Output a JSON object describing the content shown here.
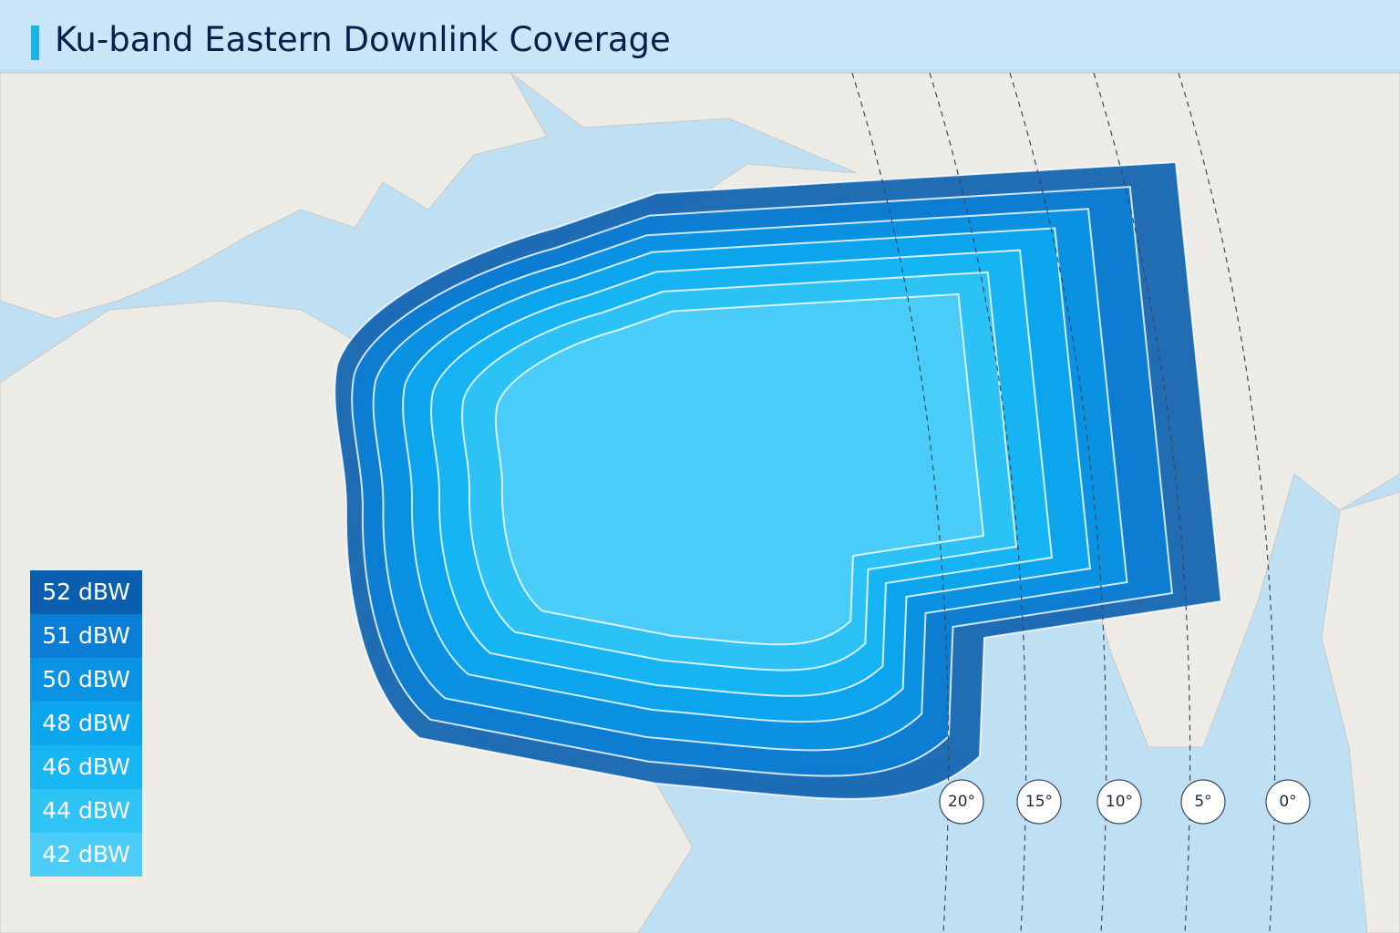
{
  "header": {
    "title": "Ku-band Eastern Downlink Coverage"
  },
  "legend": [
    {
      "label": "52 dBW",
      "color": "#0b5fae"
    },
    {
      "label": "51 dBW",
      "color": "#0a7ed4"
    },
    {
      "label": "50 dBW",
      "color": "#0a93e2"
    },
    {
      "label": "48 dBW",
      "color": "#0ca6ee"
    },
    {
      "label": "46 dBW",
      "color": "#18b6f3"
    },
    {
      "label": "44 dBW",
      "color": "#2fc3f6"
    },
    {
      "label": "42 dBW",
      "color": "#4ccdf7"
    }
  ],
  "elevation": {
    "labels": [
      "20°",
      "15°",
      "10°",
      "5°",
      "0°"
    ]
  }
}
